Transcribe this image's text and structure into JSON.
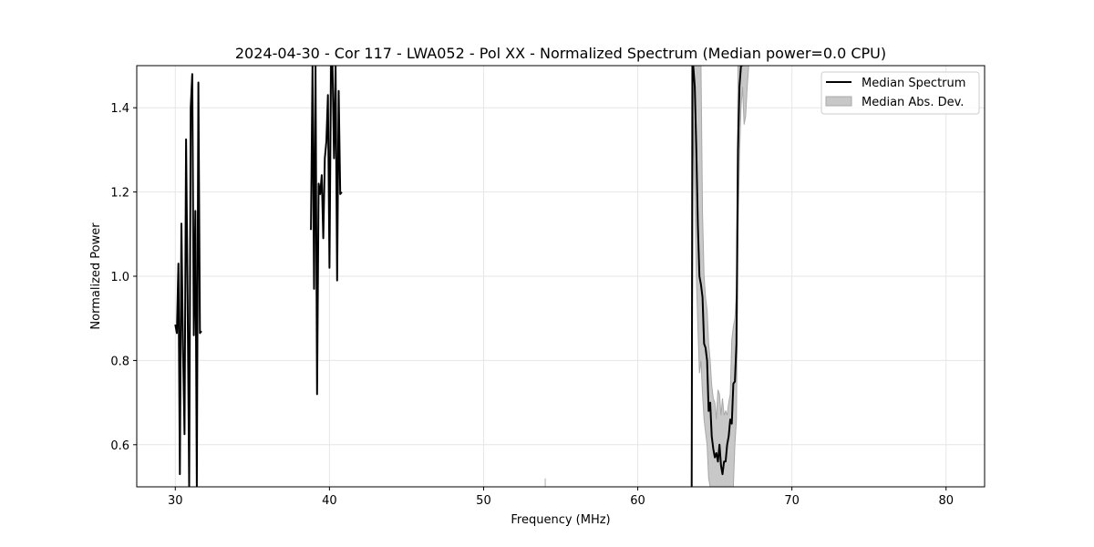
{
  "chart_data": {
    "type": "line",
    "title": "2024-04-30 - Cor 117 - LWA052 - Pol XX - Normalized Spectrum (Median power=0.0 CPU)",
    "xlabel": "Frequency (MHz)",
    "ylabel": "Normalized Power",
    "xlim": [
      27.5,
      82.5
    ],
    "ylim": [
      0.5,
      1.5
    ],
    "xticks": [
      30,
      40,
      50,
      60,
      70,
      80
    ],
    "yticks": [
      0.6,
      0.8,
      1.0,
      1.2,
      1.4
    ],
    "xtick_labels": [
      "30",
      "40",
      "50",
      "60",
      "70",
      "80"
    ],
    "ytick_labels": [
      "0.6",
      "0.8",
      "1.0",
      "1.2",
      "1.4"
    ],
    "grid": true,
    "legend_position": "top-right",
    "colors": {
      "median": "#000000",
      "mad_fill": "#c8c8c8",
      "mad_edge": "#a8a8a8",
      "grid": "#e6e6e6"
    },
    "series": [
      {
        "name": "Median Spectrum",
        "kind": "line",
        "segments": [
          {
            "x": [
              30.0,
              30.1,
              30.2,
              30.3,
              30.4,
              30.5,
              30.6,
              30.7,
              30.8,
              30.9,
              31.0,
              31.1,
              31.2,
              31.3,
              31.4,
              31.5,
              31.6,
              31.7
            ],
            "y": [
              0.885,
              0.865,
              1.03,
              0.53,
              1.125,
              0.83,
              0.625,
              1.325,
              0.95,
              0.5,
              1.4,
              1.48,
              0.86,
              1.155,
              0.5,
              1.46,
              0.865,
              0.87
            ]
          },
          {
            "x": [
              38.8,
              38.9,
              39.0,
              39.1,
              39.2,
              39.3,
              39.4,
              39.5,
              39.6,
              39.7,
              39.8,
              39.9,
              40.0,
              40.1,
              40.2,
              40.3,
              40.4,
              40.5,
              40.6,
              40.7,
              40.8
            ],
            "y": [
              1.11,
              1.5,
              0.97,
              1.5,
              0.72,
              1.22,
              1.195,
              1.24,
              1.09,
              1.28,
              1.32,
              1.43,
              1.02,
              1.5,
              1.5,
              1.28,
              1.5,
              0.99,
              1.44,
              1.195,
              1.2
            ]
          },
          {
            "x": [
              63.5,
              63.55,
              63.6,
              63.7,
              63.8,
              63.9,
              64.0,
              64.1,
              64.2,
              64.3,
              64.4,
              64.5,
              64.6,
              64.7,
              64.8,
              64.9,
              65.0,
              65.1,
              65.2,
              65.3,
              65.4,
              65.5,
              65.6,
              65.7,
              65.8,
              65.9,
              66.0,
              66.1,
              66.2,
              66.3,
              66.4,
              66.5,
              66.6,
              66.7,
              66.8
            ],
            "y": [
              0.5,
              1.5,
              1.5,
              1.45,
              1.3,
              1.12,
              1.0,
              0.98,
              0.95,
              0.84,
              0.83,
              0.8,
              0.68,
              0.7,
              0.62,
              0.59,
              0.57,
              0.58,
              0.56,
              0.6,
              0.55,
              0.53,
              0.56,
              0.56,
              0.6,
              0.62,
              0.66,
              0.65,
              0.745,
              0.75,
              0.84,
              1.3,
              1.45,
              1.5,
              1.5
            ]
          }
        ]
      },
      {
        "name": "Median Abs. Dev.",
        "kind": "band",
        "x": [
          63.5,
          63.6,
          63.7,
          63.8,
          63.9,
          64.0,
          64.1,
          64.2,
          64.3,
          64.4,
          64.5,
          64.6,
          64.7,
          64.8,
          64.9,
          65.0,
          65.1,
          65.2,
          65.3,
          65.4,
          65.5,
          65.6,
          65.7,
          65.8,
          65.9,
          66.0,
          66.1,
          66.2,
          66.3,
          66.4,
          66.5,
          66.6,
          66.7,
          66.8,
          66.9,
          67.0,
          67.1,
          67.2,
          67.3,
          67.4,
          67.5
        ],
        "lower": [
          0.5,
          1.38,
          1.2,
          1.0,
          0.88,
          0.77,
          0.8,
          0.72,
          0.66,
          0.63,
          0.6,
          0.52,
          0.5,
          0.5,
          0.5,
          0.5,
          0.5,
          0.5,
          0.5,
          0.5,
          0.5,
          0.5,
          0.5,
          0.5,
          0.5,
          0.5,
          0.5,
          0.5,
          0.6,
          0.66,
          1.1,
          1.28,
          1.4,
          1.45,
          1.36,
          1.38,
          1.45,
          1.5,
          1.5,
          1.5,
          1.5
        ],
        "upper": [
          1.5,
          1.5,
          1.5,
          1.5,
          1.5,
          1.5,
          1.5,
          1.15,
          1.0,
          0.95,
          0.92,
          0.84,
          0.8,
          0.74,
          0.71,
          0.7,
          0.66,
          0.73,
          0.72,
          0.67,
          0.71,
          0.67,
          0.68,
          0.67,
          0.7,
          0.72,
          0.85,
          0.88,
          0.9,
          0.96,
          1.5,
          1.5,
          1.5,
          1.5,
          1.5,
          1.5,
          1.5,
          1.5,
          1.5,
          1.5,
          1.5
        ]
      }
    ],
    "stray_marks": [
      {
        "x": [
          54.0,
          54.0
        ],
        "y": [
          0.5,
          0.52
        ]
      }
    ]
  }
}
